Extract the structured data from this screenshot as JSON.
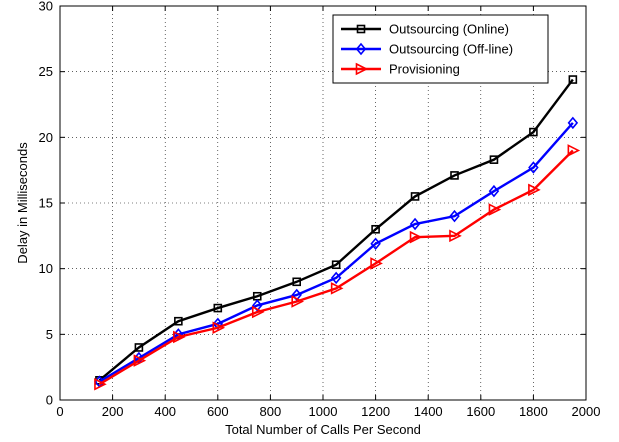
{
  "chart_data": {
    "type": "line",
    "title": "",
    "xlabel": "Total Number of Calls Per Second",
    "ylabel": "Delay in Milliseconds",
    "xlim": [
      0,
      2000
    ],
    "ylim": [
      0,
      30
    ],
    "xticks": [
      0,
      200,
      400,
      600,
      800,
      1000,
      1200,
      1400,
      1600,
      1800,
      2000
    ],
    "yticks": [
      0,
      5,
      10,
      15,
      20,
      25,
      30
    ],
    "grid": true,
    "legend_position": "top-right",
    "x": [
      150,
      300,
      450,
      600,
      750,
      900,
      1050,
      1200,
      1350,
      1500,
      1650,
      1800,
      1950
    ],
    "series": [
      {
        "name": "Outsourcing (Online)",
        "color": "#000000",
        "marker": "square",
        "values": [
          1.5,
          4.0,
          6.0,
          7.0,
          7.9,
          9.0,
          10.3,
          13.0,
          15.5,
          17.1,
          18.3,
          20.4,
          24.4
        ]
      },
      {
        "name": "Outsourcing (Off-line)",
        "color": "#0000ff",
        "marker": "diamond",
        "values": [
          1.4,
          3.2,
          5.0,
          5.8,
          7.2,
          8.0,
          9.3,
          11.9,
          13.4,
          14.0,
          15.9,
          17.7,
          21.1
        ]
      },
      {
        "name": "Provisioning",
        "color": "#ff0000",
        "marker": "triangle-right",
        "values": [
          1.2,
          3.0,
          4.8,
          5.5,
          6.7,
          7.5,
          8.5,
          10.4,
          12.4,
          12.5,
          14.5,
          16.0,
          19.0
        ]
      }
    ]
  }
}
